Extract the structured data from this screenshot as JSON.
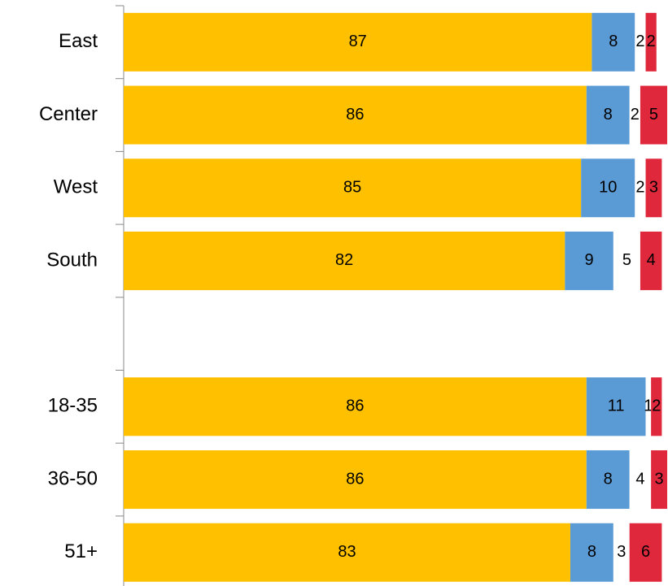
{
  "chart_data": {
    "type": "stacked-bar-horizontal",
    "categories": [
      "East",
      "Center",
      "West",
      "South",
      null,
      "18-35",
      "36-50",
      "51+"
    ],
    "series": [
      {
        "color": "#FFC000",
        "values": [
          87,
          86,
          85,
          82,
          null,
          86,
          86,
          83
        ]
      },
      {
        "color": "#5B9BD5",
        "values": [
          8,
          8,
          10,
          9,
          null,
          11,
          8,
          8
        ]
      },
      {
        "color": "#FFFFFF",
        "values": [
          2,
          2,
          2,
          5,
          null,
          1,
          4,
          3
        ]
      },
      {
        "color": "#E0283C",
        "values": [
          2,
          5,
          3,
          4,
          null,
          2,
          3,
          6
        ]
      }
    ],
    "xlim": [
      0,
      101
    ]
  }
}
